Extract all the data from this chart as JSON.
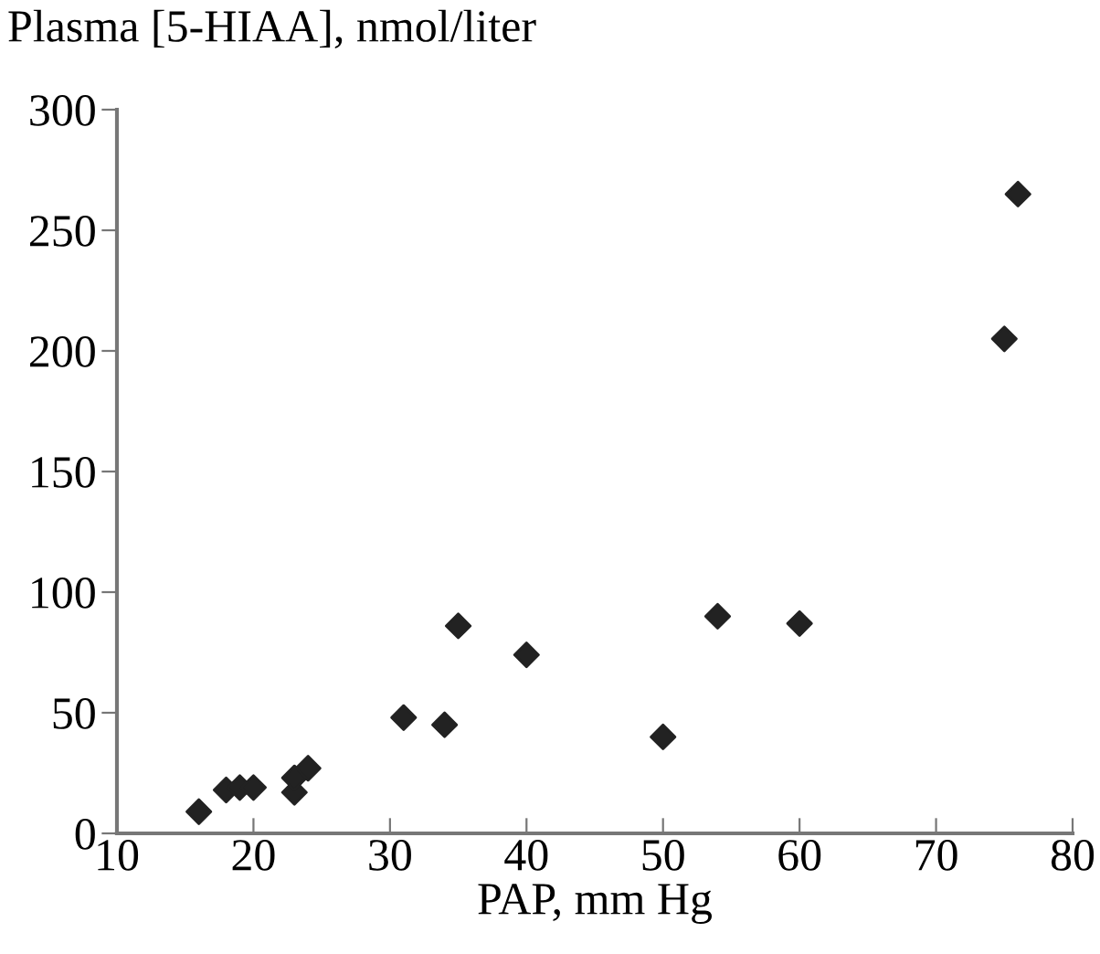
{
  "chart_data": {
    "type": "scatter",
    "ylabel": "Plasma [5-HIAA], nmol/liter",
    "xlabel": "PAP, mm Hg",
    "x": [
      16,
      18,
      19,
      20,
      23,
      23,
      24,
      31,
      34,
      35,
      40,
      50,
      54,
      60,
      75,
      76
    ],
    "values": [
      9,
      18,
      19,
      19,
      17,
      23,
      27,
      48,
      45,
      86,
      74,
      40,
      90,
      87,
      205,
      265
    ],
    "color": "#222222",
    "marker": "diamond",
    "grid": false,
    "legend": false,
    "xlim": [
      10,
      80
    ],
    "xticks": [
      10,
      20,
      30,
      40,
      50,
      60,
      70,
      80
    ],
    "ylim": [
      0,
      300
    ],
    "yticks": [
      0,
      50,
      100,
      150,
      200,
      250,
      300
    ]
  }
}
